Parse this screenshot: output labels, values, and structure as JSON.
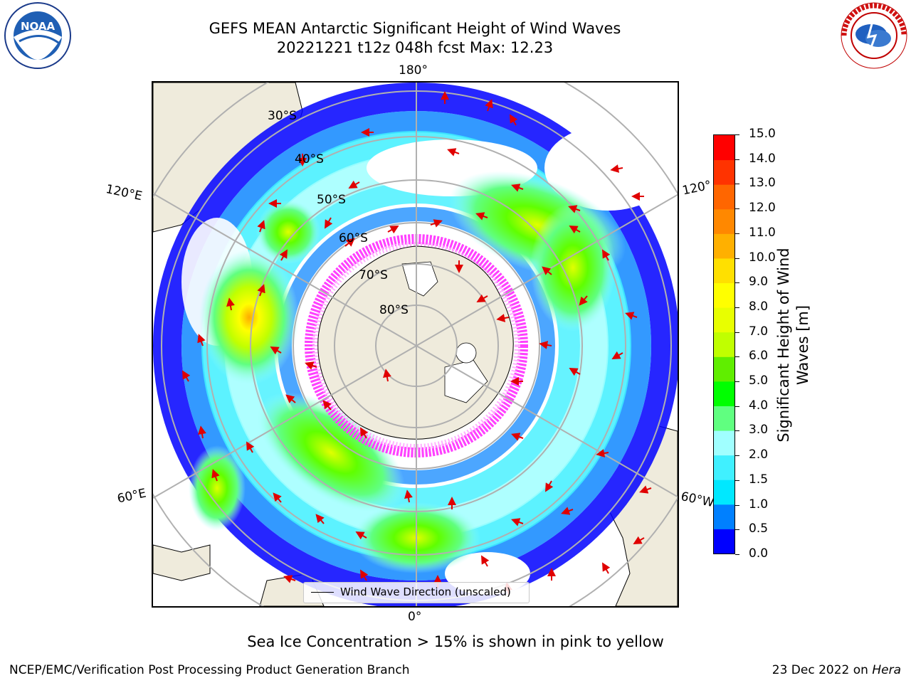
{
  "title": {
    "line1": "GEFS MEAN Antarctic Significant Height of Wind Waves",
    "line2": "20221221 t12z 048h fcst   Max: 12.23"
  },
  "map": {
    "projection": "south-polar-stereographic",
    "longitude_labels": {
      "top": "180°",
      "bottom": "0°",
      "left_upper": "120°E",
      "left_lower": "60°E",
      "right_upper": "120°",
      "right_lower": "60°W"
    },
    "latitude_labels": [
      "30°S",
      "40°S",
      "50°S",
      "60°S",
      "70°S",
      "80°S"
    ],
    "legend_label": "Wind Wave Direction (unscaled)",
    "land_color": "#efebdc",
    "ice_colors": [
      "#ff40ff",
      "#ffb0ff",
      "#ffd24d"
    ]
  },
  "colorbar": {
    "title_line1": "Significant Height of Wind",
    "title_line2": "Waves [m]",
    "ticks": [
      "0.0",
      "0.5",
      "1.0",
      "1.5",
      "2.0",
      "3.0",
      "4.0",
      "5.0",
      "6.0",
      "7.0",
      "8.0",
      "9.0",
      "10.0",
      "11.0",
      "12.0",
      "13.0",
      "14.0",
      "15.0"
    ],
    "colors": [
      "#0000ff",
      "#0080ff",
      "#00e8ff",
      "#40f0ff",
      "#a0ffff",
      "#60ff80",
      "#00ff00",
      "#60ee00",
      "#c0ff00",
      "#e8ff00",
      "#ffff00",
      "#ffe000",
      "#ffb000",
      "#ff8800",
      "#ff6600",
      "#ff3300",
      "#ff0000"
    ]
  },
  "caption": "Sea Ice Concentration > 15% is shown in pink to yellow",
  "footer": {
    "left": "NCEP/EMC/Verification Post Processing Product Generation Branch",
    "right_date": "23 Dec 2022 on ",
    "right_machine": "Hera"
  },
  "logos": {
    "noaa": "NOAA",
    "nws": "NATIONAL WEATHER SERVICE",
    "noaa_ring": "NATIONAL OCEANIC AND ATMOSPHERIC ADMINISTRATION"
  }
}
